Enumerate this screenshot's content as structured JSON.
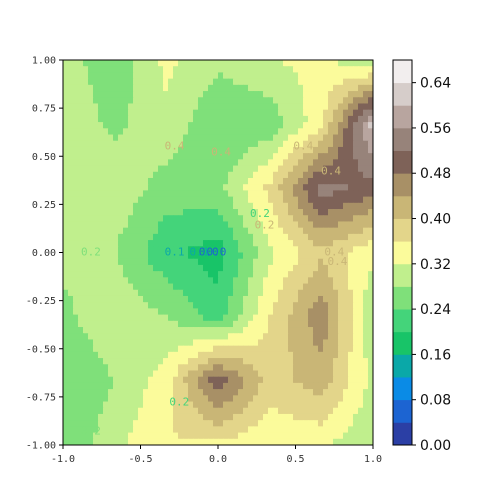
{
  "chart_data": {
    "type": "contourf",
    "x_range": [
      -1.0,
      1.0
    ],
    "y_range": [
      -1.0,
      1.0
    ],
    "x_ticks": [
      "-1.0",
      "-0.5",
      "0.0",
      "0.5",
      "1.0"
    ],
    "y_ticks": [
      "-1.00",
      "-0.75",
      "-0.50",
      "-0.25",
      "0.00",
      "0.25",
      "0.50",
      "0.75",
      "1.00"
    ],
    "x_tick_values": [
      -1.0,
      -0.5,
      0.0,
      0.5,
      1.0
    ],
    "y_tick_values": [
      -1.0,
      -0.75,
      -0.5,
      -0.25,
      0.0,
      0.25,
      0.5,
      0.75,
      1.0
    ],
    "levels": [
      0.0,
      0.04,
      0.08,
      0.12,
      0.16,
      0.2,
      0.24,
      0.28,
      0.32,
      0.36,
      0.4,
      0.44,
      0.48,
      0.52,
      0.56,
      0.6,
      0.64,
      0.68
    ],
    "colorbar_ticks": [
      "0.00",
      "0.08",
      "0.16",
      "0.24",
      "0.32",
      "0.40",
      "0.48",
      "0.56",
      "0.64"
    ],
    "colorbar_tick_values": [
      0.0,
      0.08,
      0.16,
      0.24,
      0.32,
      0.4,
      0.48,
      0.56,
      0.64
    ],
    "colors": [
      "#2b3fa5",
      "#1c64d2",
      "#0a8be6",
      "#0aa8a8",
      "#18c468",
      "#44d47a",
      "#7fe07a",
      "#c0ef8d",
      "#fbfb9b",
      "#e3d58a",
      "#c9b676",
      "#a89066",
      "#7e6258",
      "#97837a",
      "#b8a59f",
      "#d6cdca",
      "#f2eeee"
    ],
    "grid_size": [
      7,
      7
    ],
    "z": [
      [
        0.3,
        0.25,
        0.33,
        0.29,
        0.32,
        0.33,
        0.28
      ],
      [
        0.31,
        0.27,
        0.31,
        0.24,
        0.25,
        0.35,
        0.62
      ],
      [
        0.29,
        0.31,
        0.26,
        0.27,
        0.37,
        0.54,
        0.5
      ],
      [
        0.29,
        0.28,
        0.21,
        0.18,
        0.31,
        0.39,
        0.33
      ],
      [
        0.27,
        0.31,
        0.28,
        0.22,
        0.36,
        0.47,
        0.28
      ],
      [
        0.24,
        0.28,
        0.34,
        0.51,
        0.38,
        0.42,
        0.31
      ],
      [
        0.24,
        0.31,
        0.36,
        0.35,
        0.33,
        0.33,
        0.28
      ]
    ],
    "contour_labels": [
      {
        "text": "0.4",
        "x": -0.28,
        "y": 0.55,
        "color": "#c9b676"
      },
      {
        "text": "0.4",
        "x": 0.02,
        "y": 0.52,
        "color": "#c9b676"
      },
      {
        "text": "0.4",
        "x": 0.55,
        "y": 0.55,
        "color": "#c9b676"
      },
      {
        "text": "0.4",
        "x": 0.73,
        "y": 0.42,
        "color": "#c9b676"
      },
      {
        "text": "0.4",
        "x": 0.75,
        "y": 0.0,
        "color": "#c9b676"
      },
      {
        "text": "0.4",
        "x": 0.77,
        "y": -0.05,
        "color": "#c9b676"
      },
      {
        "text": "0.2",
        "x": 0.27,
        "y": 0.2,
        "color": "#44d47a"
      },
      {
        "text": "0.2",
        "x": 0.3,
        "y": 0.14,
        "color": "#c9b676"
      },
      {
        "text": "0.2",
        "x": -0.82,
        "y": 0.0,
        "color": "#7fe07a"
      },
      {
        "text": "0.2",
        "x": -0.25,
        "y": -0.78,
        "color": "#44d47a"
      },
      {
        "text": "0.1",
        "x": -0.28,
        "y": 0.0,
        "color": "#0aa8a8"
      },
      {
        "text": "0.1",
        "x": -0.12,
        "y": 0.0,
        "color": "#0aa8a8"
      },
      {
        "text": "0.0",
        "x": -0.06,
        "y": 0.0,
        "color": "#1c64d2"
      },
      {
        "text": "0.0",
        "x": -0.01,
        "y": 0.0,
        "color": "#1c64d2"
      },
      {
        "text": "0.2",
        "x": -0.82,
        "y": -0.93,
        "color": "#7fe07a"
      }
    ]
  }
}
